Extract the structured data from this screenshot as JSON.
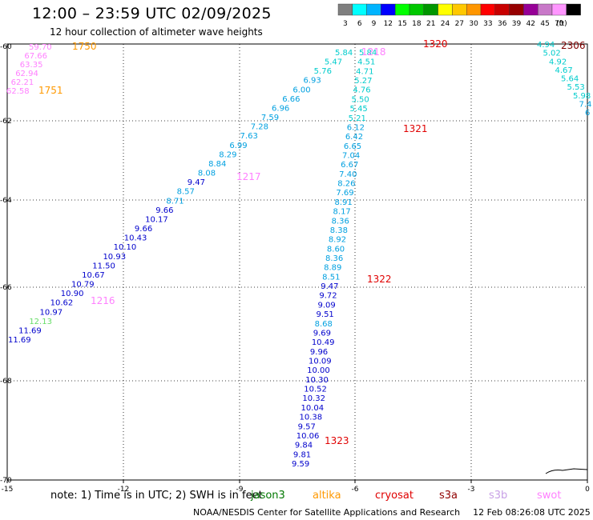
{
  "header": {
    "title": "12:00 – 23:59 UTC 02/09/2025",
    "subtitle": "12 hour collection of altimeter wave heights"
  },
  "legend": {
    "unit": "(ft)",
    "items": [
      {
        "label": "3",
        "color": "#7f7f7f"
      },
      {
        "label": "6",
        "color": "#00ffff"
      },
      {
        "label": "9",
        "color": "#00b4ff"
      },
      {
        "label": "12",
        "color": "#0000ff"
      },
      {
        "label": "15",
        "color": "#00ff00"
      },
      {
        "label": "18",
        "color": "#00c800"
      },
      {
        "label": "21",
        "color": "#009600"
      },
      {
        "label": "24",
        "color": "#ffff00"
      },
      {
        "label": "27",
        "color": "#ffc800"
      },
      {
        "label": "30",
        "color": "#ff9600"
      },
      {
        "label": "33",
        "color": "#ff0000"
      },
      {
        "label": "36",
        "color": "#c80000"
      },
      {
        "label": "39",
        "color": "#960000"
      },
      {
        "label": "42",
        "color": "#960096"
      },
      {
        "label": "45",
        "color": "#c878c8"
      },
      {
        "label": "70",
        "color": "#ff96ff"
      },
      {
        "label": "",
        "color": "#000000"
      }
    ]
  },
  "map": {
    "lon_ticks": [
      "-15",
      "-12",
      "-9",
      "-6",
      "-3",
      "0"
    ],
    "lat_ticks": [
      "-60",
      "-62",
      "-64",
      "-66",
      "-68",
      "-70"
    ],
    "passes": [
      {
        "label": "1750",
        "color": "#ff9900"
      },
      {
        "label": "1751",
        "color": "#ff9900"
      },
      {
        "label": "1217",
        "color": "#ff80ff"
      },
      {
        "label": "1216",
        "color": "#ff80ff"
      },
      {
        "label": "1218",
        "color": "#ff80ff"
      },
      {
        "label": "1320",
        "color": "#e00000"
      },
      {
        "label": "1321",
        "color": "#e00000"
      },
      {
        "label": "1322",
        "color": "#e00000"
      },
      {
        "label": "1323",
        "color": "#e00000"
      },
      {
        "label": "2306",
        "color": "#800000"
      }
    ],
    "track_a": [
      {
        "v": "59.70",
        "c": "#ff80ff"
      },
      {
        "v": "67.66",
        "c": "#ff80ff"
      },
      {
        "v": "63.35",
        "c": "#ff80ff"
      },
      {
        "v": "62.94",
        "c": "#ff80ff"
      },
      {
        "v": "62.21",
        "c": "#ff80ff"
      },
      {
        "v": "62.58",
        "c": "#ff80ff"
      }
    ],
    "track_b": [
      {
        "v": "5.84",
        "c": "#00cccc"
      },
      {
        "v": "5.47",
        "c": "#00cccc"
      },
      {
        "v": "5.76",
        "c": "#00cccc"
      },
      {
        "v": "6.93",
        "c": "#00a0e0"
      },
      {
        "v": "6.00",
        "c": "#00a0e0"
      },
      {
        "v": "6.66",
        "c": "#00a0e0"
      },
      {
        "v": "6.96",
        "c": "#00a0e0"
      },
      {
        "v": "7.59",
        "c": "#00a0e0"
      },
      {
        "v": "7.28",
        "c": "#00a0e0"
      },
      {
        "v": "7.63",
        "c": "#00a0e0"
      },
      {
        "v": "6.99",
        "c": "#00a0e0"
      },
      {
        "v": "8.29",
        "c": "#00a0e0"
      },
      {
        "v": "8.84",
        "c": "#00a0e0"
      },
      {
        "v": "8.08",
        "c": "#00a0e0"
      },
      {
        "v": "9.47",
        "c": "#0000cc"
      },
      {
        "v": "8.57",
        "c": "#00a0e0"
      },
      {
        "v": "8.71",
        "c": "#00a0e0"
      },
      {
        "v": "9.66",
        "c": "#0000cc"
      },
      {
        "v": "10.17",
        "c": "#0000cc"
      },
      {
        "v": "9.66",
        "c": "#0000cc"
      },
      {
        "v": "10.43",
        "c": "#0000cc"
      },
      {
        "v": "10.10",
        "c": "#0000cc"
      },
      {
        "v": "10.93",
        "c": "#0000cc"
      },
      {
        "v": "11.50",
        "c": "#0000cc"
      },
      {
        "v": "10.67",
        "c": "#0000cc"
      },
      {
        "v": "10.79",
        "c": "#0000cc"
      },
      {
        "v": "10.90",
        "c": "#0000cc"
      },
      {
        "v": "10.62",
        "c": "#0000cc"
      },
      {
        "v": "10.97",
        "c": "#0000cc"
      },
      {
        "v": "12.13",
        "c": "#66dd66"
      },
      {
        "v": "11.69",
        "c": "#0000cc"
      },
      {
        "v": "11.69",
        "c": "#0000cc"
      }
    ],
    "track_c": [
      {
        "v": "5.84",
        "c": "#00cccc"
      },
      {
        "v": "4.51",
        "c": "#00cccc"
      },
      {
        "v": "4.71",
        "c": "#00cccc"
      },
      {
        "v": "5.27",
        "c": "#00cccc"
      },
      {
        "v": "4.76",
        "c": "#00cccc"
      },
      {
        "v": "5.50",
        "c": "#00cccc"
      },
      {
        "v": "5.45",
        "c": "#00cccc"
      },
      {
        "v": "5.21",
        "c": "#00cccc"
      },
      {
        "v": "6.12",
        "c": "#00a0e0"
      },
      {
        "v": "6.42",
        "c": "#00a0e0"
      },
      {
        "v": "6.65",
        "c": "#00a0e0"
      },
      {
        "v": "7.04",
        "c": "#00a0e0"
      },
      {
        "v": "6.67",
        "c": "#00a0e0"
      },
      {
        "v": "7.40",
        "c": "#00a0e0"
      },
      {
        "v": "8.26",
        "c": "#00a0e0"
      },
      {
        "v": "7.69",
        "c": "#00a0e0"
      },
      {
        "v": "8.91",
        "c": "#00a0e0"
      },
      {
        "v": "8.17",
        "c": "#00a0e0"
      },
      {
        "v": "8.36",
        "c": "#00a0e0"
      },
      {
        "v": "8.38",
        "c": "#00a0e0"
      },
      {
        "v": "8.92",
        "c": "#00a0e0"
      },
      {
        "v": "8.60",
        "c": "#00a0e0"
      },
      {
        "v": "8.36",
        "c": "#00a0e0"
      },
      {
        "v": "8.89",
        "c": "#00a0e0"
      },
      {
        "v": "8.51",
        "c": "#00a0e0"
      },
      {
        "v": "9.47",
        "c": "#0000cc"
      },
      {
        "v": "9.72",
        "c": "#0000cc"
      },
      {
        "v": "9.09",
        "c": "#0000cc"
      },
      {
        "v": "9.51",
        "c": "#0000cc"
      },
      {
        "v": "8.68",
        "c": "#00a0e0"
      },
      {
        "v": "9.69",
        "c": "#0000cc"
      },
      {
        "v": "10.49",
        "c": "#0000cc"
      },
      {
        "v": "9.96",
        "c": "#0000cc"
      },
      {
        "v": "10.09",
        "c": "#0000cc"
      },
      {
        "v": "10.00",
        "c": "#0000cc"
      },
      {
        "v": "10.30",
        "c": "#0000cc"
      },
      {
        "v": "10.52",
        "c": "#0000cc"
      },
      {
        "v": "10.32",
        "c": "#0000cc"
      },
      {
        "v": "10.04",
        "c": "#0000cc"
      },
      {
        "v": "10.38",
        "c": "#0000cc"
      },
      {
        "v": "9.57",
        "c": "#0000cc"
      },
      {
        "v": "10.06",
        "c": "#0000cc"
      },
      {
        "v": "9.84",
        "c": "#0000cc"
      },
      {
        "v": "9.81",
        "c": "#0000cc"
      },
      {
        "v": "9.59",
        "c": "#0000cc"
      }
    ],
    "track_d": [
      {
        "v": "4.94",
        "c": "#00cccc"
      },
      {
        "v": "5.02",
        "c": "#00cccc"
      },
      {
        "v": "4.92",
        "c": "#00cccc"
      },
      {
        "v": "4.67",
        "c": "#00cccc"
      },
      {
        "v": "5.64",
        "c": "#00cccc"
      },
      {
        "v": "5.53",
        "c": "#00cccc"
      },
      {
        "v": "5.98",
        "c": "#00cccc"
      },
      {
        "v": "7.4",
        "c": "#00a0e0"
      },
      {
        "v": "6",
        "c": "#00a0e0"
      }
    ]
  },
  "note": {
    "text": "note:  1) Time is in UTC; 2) SWH is in feet",
    "missions": [
      {
        "label": "jason3",
        "color": "#007700"
      },
      {
        "label": "altika",
        "color": "#ff9900"
      },
      {
        "label": "cryosat",
        "color": "#e00000"
      },
      {
        "label": "s3a",
        "color": "#900000"
      },
      {
        "label": "s3b",
        "color": "#c8a0e6"
      },
      {
        "label": "swot",
        "color": "#ff80ff"
      }
    ]
  },
  "footer": {
    "org": "NOAA/NESDIS Center for Satellite Applications and Research",
    "timestamp": "12 Feb 08:26:08 UTC 2025"
  }
}
